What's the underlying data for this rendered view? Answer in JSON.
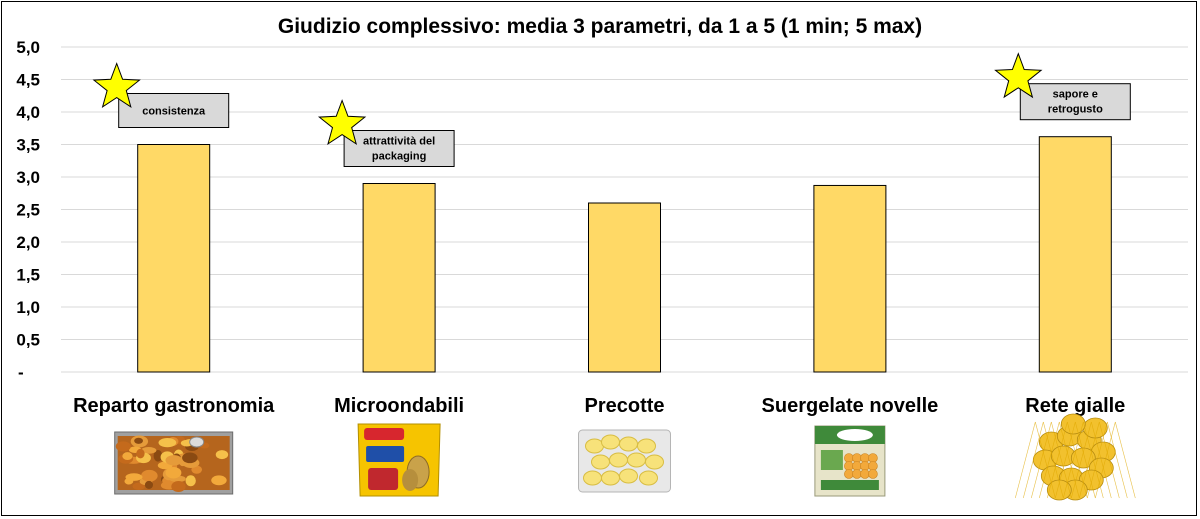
{
  "chart_data": {
    "type": "bar",
    "title": "Giudizio complessivo: media 3 parametri, da 1 a 5 (1 min; 5 max)",
    "xlabel": "",
    "ylabel": "",
    "categories": [
      "Reparto gastronomia",
      "Microondabili",
      "Precotte",
      "Suergelate novelle",
      "Rete gialle"
    ],
    "values": [
      3.5,
      2.9,
      2.6,
      2.87,
      3.62
    ],
    "ylim": [
      0,
      5
    ],
    "yticks": [
      0,
      0.5,
      1,
      1.5,
      2,
      2.5,
      3,
      3.5,
      4,
      4.5,
      5
    ],
    "ytick_labels": [
      "-",
      "0,5",
      "1,0",
      "1,5",
      "2,0",
      "2,5",
      "3,0",
      "3,5",
      "4,0",
      "4,5",
      "5,0"
    ],
    "grid": true,
    "legend": "none",
    "bar_color": "#FFD966",
    "bar_edge_color": "#000000",
    "annotations": [
      {
        "category_index": 0,
        "lines": [
          "consistenza"
        ],
        "icon": "star-icon"
      },
      {
        "category_index": 1,
        "lines": [
          "attrattività del",
          "packaging"
        ],
        "icon": "star-icon"
      },
      {
        "category_index": 4,
        "lines": [
          "sapore e",
          "retrogusto"
        ],
        "icon": "star-icon"
      }
    ],
    "star_color": "#FFFF00",
    "product_images": [
      {
        "category_index": 0,
        "icon": "roasted-potatoes-tray-image"
      },
      {
        "category_index": 1,
        "icon": "microwave-potato-bag-image"
      },
      {
        "category_index": 2,
        "icon": "precooked-potato-pack-image"
      },
      {
        "category_index": 3,
        "icon": "frozen-potato-box-image"
      },
      {
        "category_index": 4,
        "icon": "potato-net-bag-image"
      }
    ]
  }
}
